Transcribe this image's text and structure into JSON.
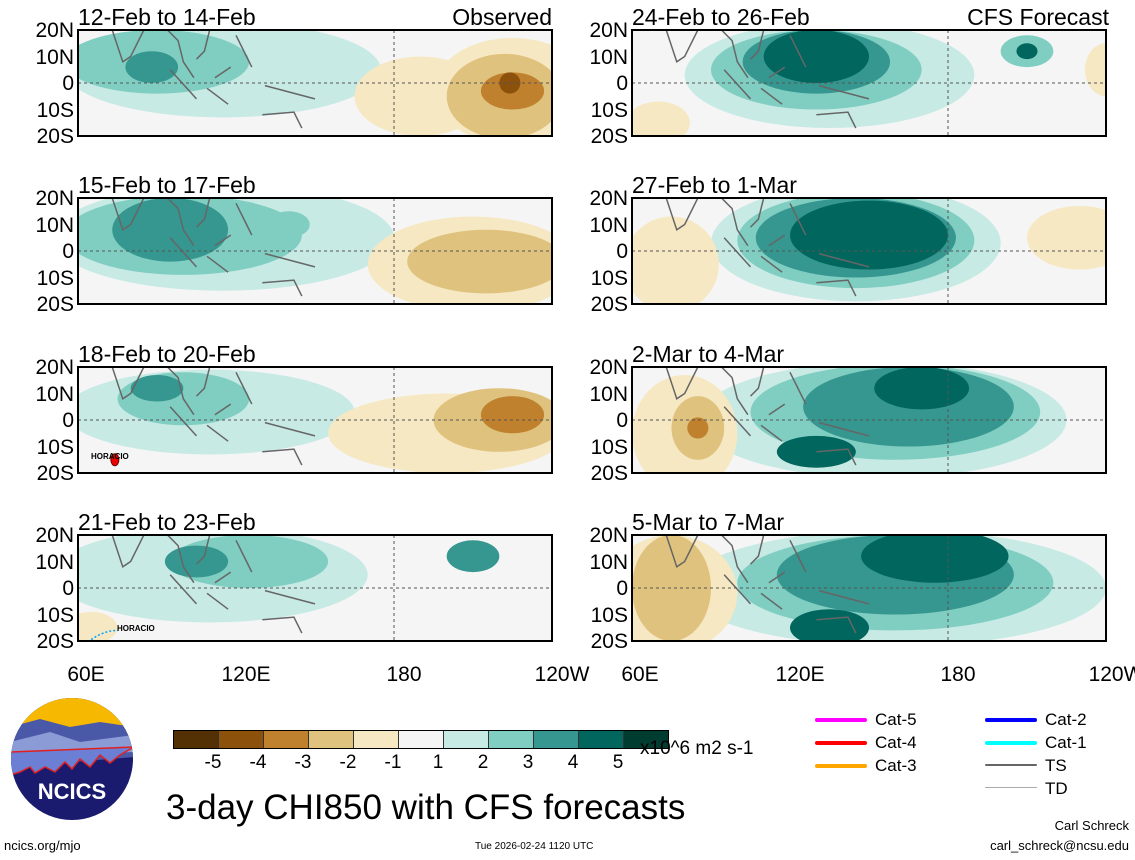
{
  "figure_title": "3-day CHI850 with CFS forecasts",
  "panels_left": [
    {
      "title": "12-Feb to 14-Feb",
      "label": "Observed"
    },
    {
      "title": "15-Feb to 17-Feb"
    },
    {
      "title": "18-Feb to 20-Feb",
      "storm": "HORACIO"
    },
    {
      "title": "21-Feb to 23-Feb",
      "storm": "HORACIO"
    }
  ],
  "panels_right": [
    {
      "title": "24-Feb to 26-Feb",
      "label": "CFS Forecast"
    },
    {
      "title": "27-Feb to 1-Mar"
    },
    {
      "title": "2-Mar to 4-Mar"
    },
    {
      "title": "5-Mar to 7-Mar"
    }
  ],
  "lat_labels": [
    "20N",
    "10N",
    "0",
    "10S",
    "20S"
  ],
  "lon_labels": [
    "60E",
    "120E",
    "180",
    "120W"
  ],
  "colorbar": {
    "colors": [
      "#543005",
      "#8c510a",
      "#bf812d",
      "#dfc27d",
      "#f6e8c3",
      "#f5f5f5",
      "#c7eae5",
      "#80cdc1",
      "#35978f",
      "#01665e",
      "#003c30"
    ],
    "ticks": [
      "-5",
      "-4",
      "-3",
      "-2",
      "-1",
      "1",
      "2",
      "3",
      "4",
      "5"
    ],
    "units": "x10^6 m2 s-1"
  },
  "storm_legend": [
    {
      "label": "Cat-5",
      "color": "#ff00ff"
    },
    {
      "label": "Cat-4",
      "color": "#ff0000"
    },
    {
      "label": "Cat-3",
      "color": "#ffa500"
    },
    {
      "label": "Cat-2",
      "color": "#0000ff"
    },
    {
      "label": "Cat-1",
      "color": "#00ffff"
    },
    {
      "label": "TS",
      "color": "#666666"
    },
    {
      "label": "TD",
      "color": "#aaaaaa"
    }
  ],
  "logo_text": "NCICS",
  "url": "ncics.org/mjo",
  "timestamp": "Tue 2026-02-24 1120 UTC",
  "author": "Carl Schreck",
  "email": "carl_schreck@ncsu.edu"
}
